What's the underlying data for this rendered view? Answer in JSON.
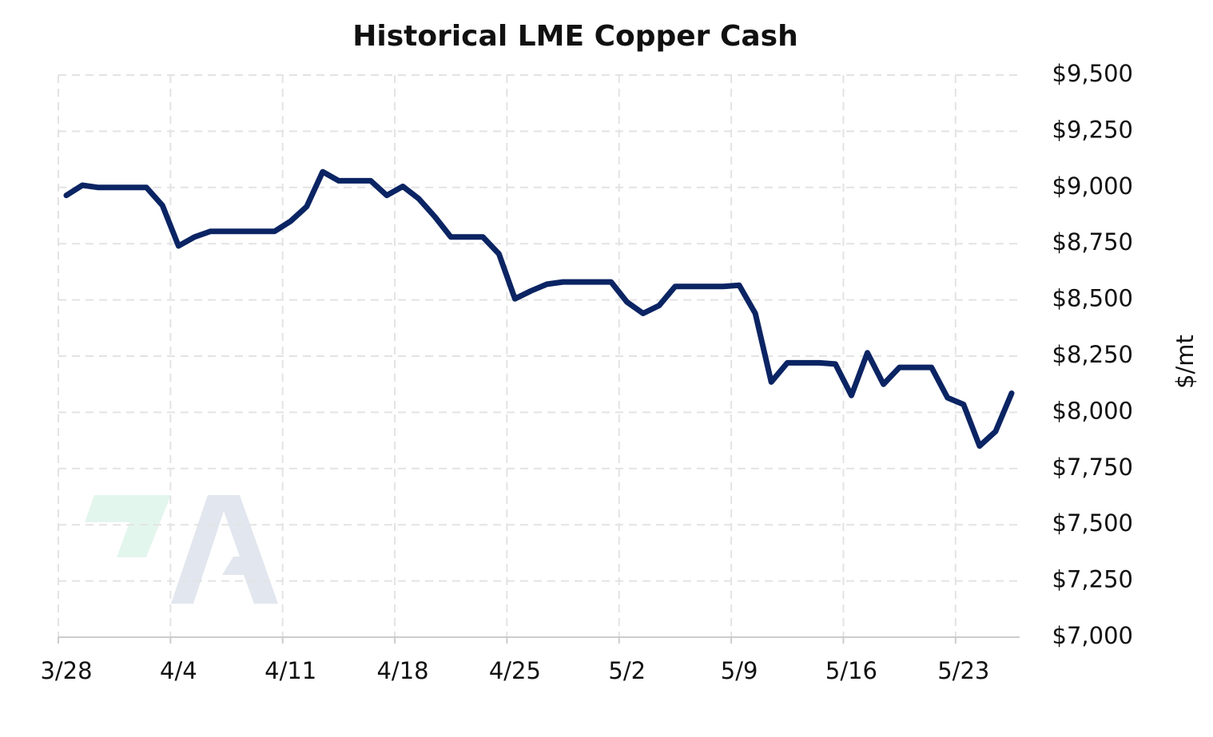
{
  "chart_data": {
    "type": "line",
    "title": "Historical LME Copper Cash",
    "y_label": "$/mt",
    "categories": [
      "3/28",
      "3/29",
      "3/30",
      "3/31",
      "4/1",
      "4/2",
      "4/3",
      "4/4",
      "4/5",
      "4/6",
      "4/7",
      "4/8",
      "4/9",
      "4/10",
      "4/11",
      "4/12",
      "4/13",
      "4/14",
      "4/15",
      "4/16",
      "4/17",
      "4/18",
      "4/19",
      "4/20",
      "4/21",
      "4/22",
      "4/23",
      "4/24",
      "4/25",
      "4/26",
      "4/27",
      "4/28",
      "4/29",
      "4/30",
      "5/1",
      "5/2",
      "5/3",
      "5/4",
      "5/5",
      "5/6",
      "5/7",
      "5/8",
      "5/9",
      "5/10",
      "5/11",
      "5/12",
      "5/13",
      "5/14",
      "5/15",
      "5/16",
      "5/17",
      "5/18",
      "5/19",
      "5/20",
      "5/21",
      "5/22",
      "5/23",
      "5/24",
      "5/25",
      "5/26"
    ],
    "series": [
      {
        "name": "LME Copper Cash",
        "color": "#0b2463",
        "values": [
          8965,
          9010,
          9000,
          9000,
          9000,
          9000,
          8920,
          8740,
          8780,
          8805,
          8805,
          8805,
          8805,
          8805,
          8850,
          8915,
          9070,
          9030,
          9030,
          9030,
          8965,
          9005,
          8950,
          8870,
          8780,
          8780,
          8780,
          8705,
          8505,
          8540,
          8570,
          8580,
          8580,
          8580,
          8580,
          8490,
          8440,
          8475,
          8560,
          8560,
          8560,
          8560,
          8565,
          8440,
          8135,
          8220,
          8220,
          8220,
          8215,
          8075,
          8265,
          8125,
          8200,
          8200,
          8200,
          8065,
          8035,
          7850,
          7915,
          8085
        ]
      }
    ],
    "xticks": [
      "3/28",
      "4/4",
      "4/11",
      "4/18",
      "4/25",
      "5/2",
      "5/9",
      "5/16",
      "5/23"
    ],
    "ylim": [
      7000,
      9500
    ],
    "yticks": [
      {
        "value": 7000,
        "label": "$7,000"
      },
      {
        "value": 7250,
        "label": "$7,250"
      },
      {
        "value": 7500,
        "label": "$7,500"
      },
      {
        "value": 7750,
        "label": "$7,750"
      },
      {
        "value": 8000,
        "label": "$8,000"
      },
      {
        "value": 8250,
        "label": "$8,250"
      },
      {
        "value": 8500,
        "label": "$8,500"
      },
      {
        "value": 8750,
        "label": "$8,750"
      },
      {
        "value": 9000,
        "label": "$9,000"
      },
      {
        "value": 9250,
        "label": "$9,250"
      },
      {
        "value": 9500,
        "label": "$9,500"
      }
    ],
    "grid": true
  }
}
